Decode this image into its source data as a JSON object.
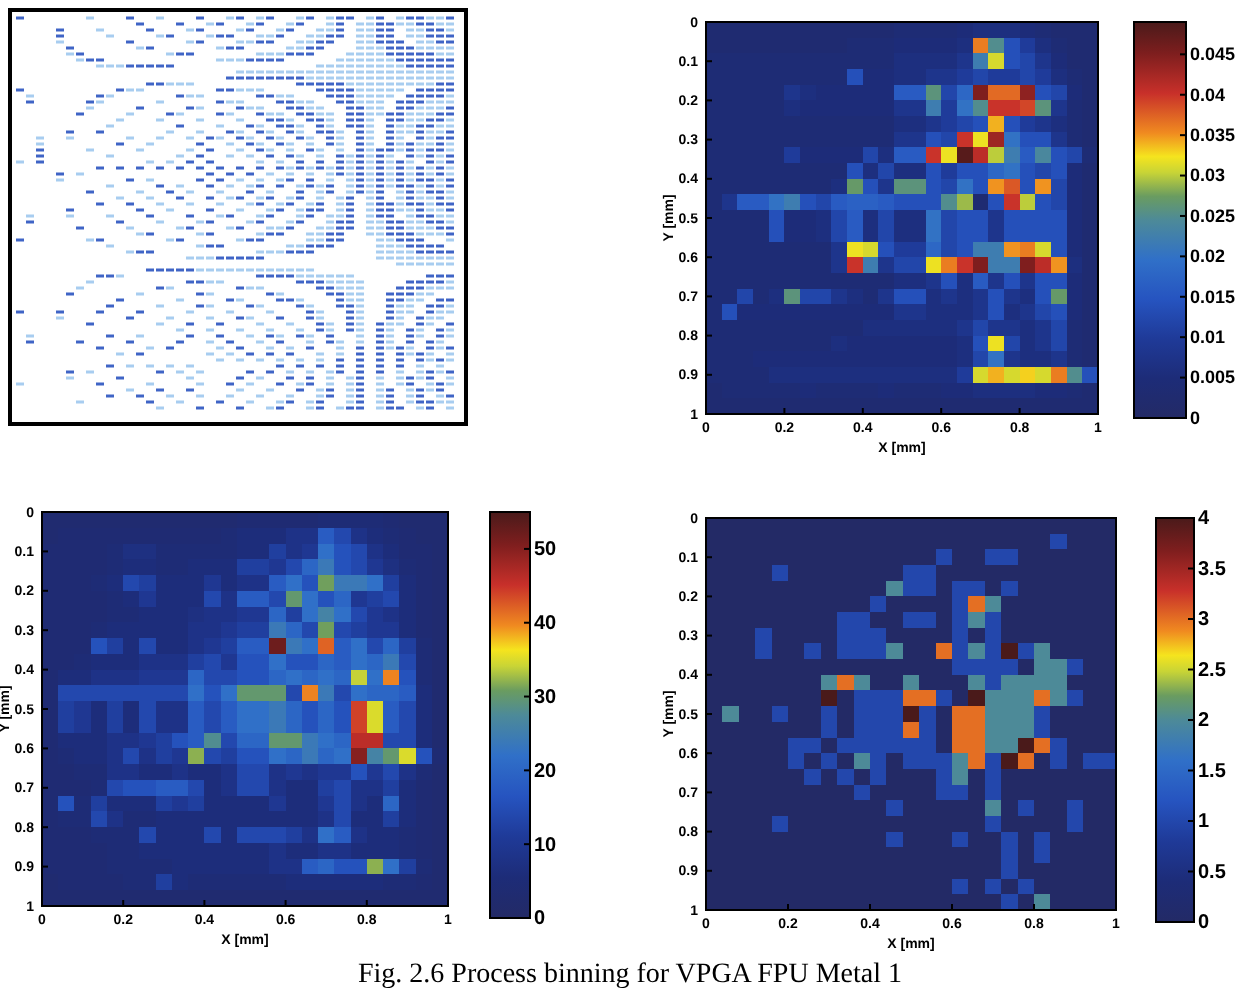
{
  "chart_data": [
    {
      "type": "heatmap",
      "xlabel": "X [mm]",
      "ylabel": "Y [mm]",
      "x": [
        0.02,
        0.06,
        0.1,
        0.14,
        0.18,
        0.22,
        0.26,
        0.3,
        0.34,
        0.38,
        0.42,
        0.46,
        0.5,
        0.54,
        0.58,
        0.62,
        0.66,
        0.7,
        0.74,
        0.78,
        0.82,
        0.86,
        0.9,
        0.94,
        0.98
      ],
      "y": [
        0.02,
        0.06,
        0.1,
        0.14,
        0.18,
        0.22,
        0.26,
        0.3,
        0.34,
        0.38,
        0.42,
        0.46,
        0.5,
        0.54,
        0.58,
        0.62,
        0.66,
        0.7,
        0.74,
        0.78,
        0.82,
        0.86,
        0.9,
        0.94,
        0.98
      ],
      "xlim": [
        0,
        1
      ],
      "xticks": [
        0,
        0.2,
        0.4,
        0.6,
        0.8,
        1
      ],
      "ylim": [
        1,
        0
      ],
      "yticks": [
        0,
        0.1,
        0.2,
        0.3,
        0.4,
        0.5,
        0.6,
        0.7,
        0.8,
        0.9,
        1
      ],
      "clim": [
        0,
        0.049
      ],
      "cticks": [
        0,
        0.005,
        0.01,
        0.015,
        0.02,
        0.025,
        0.03,
        0.035,
        0.04,
        0.045
      ],
      "cells": [
        [
          0.003,
          0.003,
          0.003,
          0.003,
          0.003,
          0.003,
          0.003,
          0.003,
          0.003,
          0.003,
          0.003,
          0.003,
          0.004,
          0.004,
          0.004,
          0.004,
          0.005,
          0.006,
          0.006,
          0.006,
          0.005,
          0.004,
          0.003,
          0.003,
          0.003
        ],
        [
          0.003,
          0.003,
          0.003,
          0.003,
          0.003,
          0.003,
          0.003,
          0.003,
          0.003,
          0.004,
          0.004,
          0.004,
          0.005,
          0.005,
          0.005,
          0.005,
          0.006,
          0.036,
          0.025,
          0.014,
          0.01,
          0.006,
          0.004,
          0.003,
          0.003
        ],
        [
          0.004,
          0.004,
          0.004,
          0.004,
          0.004,
          0.004,
          0.004,
          0.004,
          0.004,
          0.004,
          0.004,
          0.004,
          0.006,
          0.006,
          0.006,
          0.006,
          0.008,
          0.022,
          0.031,
          0.014,
          0.012,
          0.008,
          0.005,
          0.003,
          0.003
        ],
        [
          0.004,
          0.004,
          0.004,
          0.004,
          0.004,
          0.004,
          0.004,
          0.004,
          0.004,
          0.014,
          0.005,
          0.005,
          0.006,
          0.006,
          0.008,
          0.008,
          0.01,
          0.012,
          0.01,
          0.01,
          0.012,
          0.01,
          0.006,
          0.004,
          0.003
        ],
        [
          0.004,
          0.004,
          0.004,
          0.004,
          0.004,
          0.008,
          0.006,
          0.005,
          0.005,
          0.005,
          0.005,
          0.005,
          0.016,
          0.016,
          0.026,
          0.012,
          0.018,
          0.045,
          0.037,
          0.037,
          0.044,
          0.014,
          0.012,
          0.005,
          0.003
        ],
        [
          0.004,
          0.004,
          0.004,
          0.004,
          0.004,
          0.006,
          0.005,
          0.005,
          0.005,
          0.005,
          0.005,
          0.005,
          0.008,
          0.008,
          0.022,
          0.01,
          0.02,
          0.025,
          0.04,
          0.04,
          0.039,
          0.026,
          0.008,
          0.004,
          0.003
        ],
        [
          0.004,
          0.004,
          0.004,
          0.004,
          0.004,
          0.004,
          0.004,
          0.004,
          0.004,
          0.004,
          0.004,
          0.004,
          0.006,
          0.006,
          0.008,
          0.01,
          0.012,
          0.014,
          0.034,
          0.014,
          0.01,
          0.008,
          0.006,
          0.004,
          0.003
        ],
        [
          0.004,
          0.004,
          0.004,
          0.004,
          0.004,
          0.004,
          0.004,
          0.004,
          0.004,
          0.004,
          0.004,
          0.004,
          0.008,
          0.008,
          0.014,
          0.012,
          0.04,
          0.032,
          0.043,
          0.02,
          0.014,
          0.014,
          0.008,
          0.004,
          0.003
        ],
        [
          0.004,
          0.004,
          0.004,
          0.004,
          0.004,
          0.01,
          0.005,
          0.005,
          0.005,
          0.005,
          0.012,
          0.006,
          0.016,
          0.016,
          0.04,
          0.032,
          0.048,
          0.041,
          0.03,
          0.022,
          0.016,
          0.024,
          0.014,
          0.012,
          0.004
        ],
        [
          0.004,
          0.004,
          0.004,
          0.004,
          0.004,
          0.004,
          0.004,
          0.004,
          0.004,
          0.014,
          0.006,
          0.012,
          0.006,
          0.006,
          0.014,
          0.01,
          0.014,
          0.014,
          0.018,
          0.02,
          0.014,
          0.012,
          0.014,
          0.005,
          0.003
        ],
        [
          0.004,
          0.004,
          0.004,
          0.004,
          0.004,
          0.004,
          0.004,
          0.004,
          0.006,
          0.027,
          0.014,
          0.008,
          0.026,
          0.026,
          0.014,
          0.012,
          0.02,
          0.014,
          0.035,
          0.038,
          0.014,
          0.035,
          0.012,
          0.005,
          0.003
        ],
        [
          0.004,
          0.008,
          0.016,
          0.016,
          0.02,
          0.022,
          0.014,
          0.012,
          0.016,
          0.017,
          0.017,
          0.016,
          0.014,
          0.014,
          0.014,
          0.025,
          0.029,
          0.003,
          0.014,
          0.04,
          0.03,
          0.014,
          0.012,
          0.005,
          0.003
        ],
        [
          0.004,
          0.004,
          0.004,
          0.004,
          0.014,
          0.005,
          0.005,
          0.006,
          0.012,
          0.016,
          0.006,
          0.012,
          0.006,
          0.006,
          0.02,
          0.012,
          0.014,
          0.014,
          0.008,
          0.014,
          0.014,
          0.014,
          0.014,
          0.005,
          0.003
        ],
        [
          0.004,
          0.004,
          0.004,
          0.004,
          0.014,
          0.005,
          0.005,
          0.006,
          0.012,
          0.016,
          0.006,
          0.012,
          0.006,
          0.006,
          0.02,
          0.012,
          0.014,
          0.014,
          0.008,
          0.014,
          0.014,
          0.014,
          0.014,
          0.005,
          0.003
        ],
        [
          0.004,
          0.004,
          0.004,
          0.004,
          0.004,
          0.004,
          0.004,
          0.004,
          0.008,
          0.032,
          0.031,
          0.014,
          0.01,
          0.01,
          0.018,
          0.012,
          0.014,
          0.022,
          0.022,
          0.035,
          0.036,
          0.031,
          0.014,
          0.005,
          0.003
        ],
        [
          0.004,
          0.004,
          0.004,
          0.004,
          0.004,
          0.004,
          0.004,
          0.004,
          0.008,
          0.04,
          0.022,
          0.008,
          0.012,
          0.012,
          0.032,
          0.036,
          0.04,
          0.045,
          0.022,
          0.022,
          0.045,
          0.041,
          0.035,
          0.006,
          0.003
        ],
        [
          0.004,
          0.004,
          0.004,
          0.004,
          0.004,
          0.004,
          0.004,
          0.004,
          0.004,
          0.004,
          0.004,
          0.004,
          0.006,
          0.006,
          0.008,
          0.014,
          0.006,
          0.016,
          0.008,
          0.014,
          0.008,
          0.014,
          0.014,
          0.005,
          0.003
        ],
        [
          0.004,
          0.004,
          0.012,
          0.004,
          0.006,
          0.026,
          0.012,
          0.012,
          0.008,
          0.006,
          0.004,
          0.008,
          0.014,
          0.014,
          0.006,
          0.008,
          0.006,
          0.008,
          0.014,
          0.008,
          0.006,
          0.014,
          0.027,
          0.005,
          0.003
        ],
        [
          0.004,
          0.014,
          0.005,
          0.005,
          0.005,
          0.005,
          0.005,
          0.005,
          0.005,
          0.005,
          0.005,
          0.005,
          0.008,
          0.008,
          0.006,
          0.006,
          0.006,
          0.008,
          0.014,
          0.006,
          0.008,
          0.012,
          0.014,
          0.005,
          0.003
        ],
        [
          0.004,
          0.004,
          0.004,
          0.004,
          0.004,
          0.004,
          0.004,
          0.004,
          0.004,
          0.004,
          0.006,
          0.006,
          0.006,
          0.006,
          0.006,
          0.006,
          0.008,
          0.012,
          0.008,
          0.008,
          0.006,
          0.008,
          0.012,
          0.004,
          0.003
        ],
        [
          0.004,
          0.004,
          0.004,
          0.004,
          0.004,
          0.004,
          0.004,
          0.004,
          0.006,
          0.005,
          0.005,
          0.005,
          0.005,
          0.005,
          0.005,
          0.005,
          0.006,
          0.014,
          0.032,
          0.012,
          0.006,
          0.008,
          0.012,
          0.004,
          0.003
        ],
        [
          0.004,
          0.004,
          0.004,
          0.005,
          0.005,
          0.005,
          0.005,
          0.005,
          0.005,
          0.005,
          0.005,
          0.005,
          0.005,
          0.005,
          0.005,
          0.005,
          0.006,
          0.012,
          0.02,
          0.008,
          0.006,
          0.006,
          0.008,
          0.004,
          0.003
        ],
        [
          0.004,
          0.004,
          0.004,
          0.004,
          0.006,
          0.006,
          0.006,
          0.006,
          0.006,
          0.006,
          0.006,
          0.006,
          0.006,
          0.006,
          0.006,
          0.006,
          0.01,
          0.031,
          0.034,
          0.031,
          0.033,
          0.031,
          0.036,
          0.025,
          0.014
        ],
        [
          0.003,
          0.004,
          0.004,
          0.004,
          0.004,
          0.004,
          0.005,
          0.004,
          0.004,
          0.004,
          0.004,
          0.005,
          0.004,
          0.004,
          0.004,
          0.005,
          0.005,
          0.006,
          0.006,
          0.006,
          0.006,
          0.005,
          0.005,
          0.004,
          0.003
        ],
        [
          0.003,
          0.003,
          0.003,
          0.003,
          0.003,
          0.003,
          0.003,
          0.003,
          0.003,
          0.003,
          0.003,
          0.003,
          0.003,
          0.003,
          0.003,
          0.003,
          0.003,
          0.003,
          0.003,
          0.003,
          0.003,
          0.003,
          0.003,
          0.003,
          0.003
        ]
      ]
    },
    {
      "type": "heatmap",
      "xlabel": "X [mm]",
      "ylabel": "Y [mm]",
      "x": [
        0.02,
        0.06,
        0.1,
        0.14,
        0.18,
        0.22,
        0.26,
        0.3,
        0.34,
        0.38,
        0.42,
        0.46,
        0.5,
        0.54,
        0.58,
        0.62,
        0.66,
        0.7,
        0.74,
        0.78,
        0.82,
        0.86,
        0.9,
        0.94,
        0.98
      ],
      "y": [
        0.02,
        0.06,
        0.1,
        0.14,
        0.18,
        0.22,
        0.26,
        0.3,
        0.34,
        0.38,
        0.42,
        0.46,
        0.5,
        0.54,
        0.58,
        0.62,
        0.66,
        0.7,
        0.74,
        0.78,
        0.82,
        0.86,
        0.9,
        0.94,
        0.98
      ],
      "xlim": [
        0,
        1
      ],
      "xticks": [
        0,
        0.2,
        0.4,
        0.6,
        0.8,
        1
      ],
      "ylim": [
        1,
        0
      ],
      "yticks": [
        0,
        0.1,
        0.2,
        0.3,
        0.4,
        0.5,
        0.6,
        0.7,
        0.8,
        0.9,
        1
      ],
      "clim": [
        0,
        55
      ],
      "cticks": [
        0,
        10,
        20,
        30,
        40,
        50
      ],
      "cells": [
        [
          3,
          3,
          3,
          3,
          3,
          3,
          3,
          3,
          3,
          3,
          3,
          3,
          4,
          4,
          4,
          4,
          4,
          5,
          5,
          5,
          5,
          4,
          3,
          3,
          3
        ],
        [
          3,
          4,
          4,
          4,
          4,
          4,
          4,
          4,
          4,
          4,
          4,
          5,
          6,
          6,
          6,
          8,
          8,
          18,
          14,
          8,
          6,
          5,
          4,
          3,
          3
        ],
        [
          4,
          4,
          4,
          4,
          5,
          7,
          7,
          5,
          5,
          5,
          5,
          5,
          6,
          6,
          12,
          8,
          10,
          22,
          16,
          14,
          8,
          6,
          4,
          4,
          3
        ],
        [
          4,
          4,
          4,
          4,
          5,
          6,
          6,
          5,
          5,
          6,
          6,
          6,
          12,
          12,
          10,
          14,
          20,
          24,
          16,
          14,
          10,
          7,
          5,
          4,
          3
        ],
        [
          4,
          4,
          4,
          5,
          6,
          14,
          12,
          6,
          6,
          6,
          10,
          6,
          8,
          8,
          18,
          22,
          16,
          31,
          24,
          24,
          22,
          12,
          6,
          4,
          3
        ],
        [
          4,
          4,
          4,
          4,
          5,
          6,
          10,
          6,
          6,
          6,
          14,
          8,
          18,
          18,
          14,
          30,
          22,
          16,
          20,
          10,
          12,
          14,
          6,
          4,
          3
        ],
        [
          4,
          4,
          4,
          4,
          5,
          5,
          6,
          6,
          6,
          7,
          8,
          8,
          10,
          10,
          20,
          12,
          22,
          26,
          22,
          14,
          10,
          8,
          6,
          4,
          3
        ],
        [
          4,
          4,
          4,
          5,
          6,
          6,
          6,
          6,
          6,
          8,
          8,
          10,
          12,
          12,
          24,
          20,
          14,
          31,
          14,
          12,
          10,
          10,
          6,
          4,
          3
        ],
        [
          4,
          4,
          4,
          16,
          12,
          6,
          14,
          6,
          6,
          8,
          10,
          12,
          18,
          18,
          52,
          24,
          22,
          42,
          18,
          22,
          14,
          20,
          12,
          5,
          3
        ],
        [
          4,
          4,
          5,
          6,
          6,
          6,
          8,
          8,
          8,
          12,
          14,
          10,
          16,
          16,
          22,
          16,
          16,
          20,
          18,
          22,
          20,
          24,
          14,
          5,
          3
        ],
        [
          4,
          6,
          6,
          8,
          8,
          8,
          10,
          10,
          10,
          20,
          14,
          14,
          16,
          16,
          20,
          22,
          20,
          22,
          20,
          34,
          22,
          40,
          16,
          5,
          3
        ],
        [
          4,
          14,
          14,
          14,
          14,
          14,
          14,
          14,
          14,
          22,
          16,
          22,
          30,
          30,
          30,
          14,
          40,
          24,
          14,
          22,
          20,
          20,
          18,
          6,
          3
        ],
        [
          4,
          12,
          10,
          6,
          12,
          6,
          14,
          8,
          8,
          18,
          14,
          18,
          22,
          22,
          24,
          20,
          16,
          20,
          16,
          44,
          35,
          18,
          14,
          6,
          3
        ],
        [
          4,
          12,
          10,
          6,
          12,
          6,
          14,
          8,
          8,
          18,
          14,
          18,
          22,
          22,
          24,
          20,
          16,
          20,
          16,
          44,
          35,
          18,
          14,
          6,
          3
        ],
        [
          4,
          6,
          6,
          6,
          8,
          8,
          10,
          12,
          16,
          18,
          28,
          14,
          20,
          20,
          30,
          30,
          24,
          22,
          20,
          46,
          46,
          14,
          14,
          6,
          3
        ],
        [
          4,
          5,
          6,
          6,
          8,
          14,
          8,
          12,
          10,
          32,
          14,
          12,
          16,
          16,
          22,
          20,
          24,
          20,
          22,
          50,
          26,
          30,
          35,
          16,
          4
        ],
        [
          4,
          4,
          5,
          5,
          8,
          8,
          6,
          6,
          8,
          6,
          6,
          8,
          14,
          14,
          8,
          10,
          8,
          10,
          10,
          16,
          10,
          14,
          8,
          5,
          3
        ],
        [
          4,
          4,
          4,
          5,
          14,
          16,
          16,
          18,
          18,
          14,
          6,
          8,
          14,
          14,
          8,
          6,
          6,
          12,
          14,
          8,
          8,
          12,
          6,
          4,
          3
        ],
        [
          4,
          16,
          5,
          12,
          6,
          6,
          6,
          12,
          10,
          12,
          6,
          6,
          6,
          6,
          10,
          6,
          6,
          10,
          14,
          8,
          6,
          20,
          6,
          4,
          3
        ],
        [
          4,
          5,
          5,
          14,
          8,
          5,
          5,
          6,
          6,
          6,
          6,
          6,
          6,
          6,
          6,
          6,
          6,
          8,
          14,
          6,
          6,
          12,
          6,
          4,
          3
        ],
        [
          4,
          4,
          4,
          5,
          5,
          5,
          14,
          6,
          6,
          6,
          14,
          6,
          14,
          14,
          14,
          12,
          8,
          22,
          18,
          8,
          6,
          6,
          5,
          4,
          3
        ],
        [
          4,
          4,
          4,
          4,
          5,
          5,
          6,
          6,
          6,
          6,
          6,
          6,
          6,
          6,
          8,
          6,
          6,
          8,
          8,
          6,
          6,
          6,
          5,
          4,
          3
        ],
        [
          4,
          4,
          4,
          4,
          5,
          5,
          5,
          5,
          6,
          6,
          6,
          6,
          6,
          6,
          8,
          8,
          18,
          20,
          16,
          16,
          32,
          22,
          12,
          5,
          3
        ],
        [
          3,
          4,
          4,
          4,
          4,
          5,
          5,
          12,
          6,
          5,
          5,
          5,
          5,
          5,
          5,
          6,
          6,
          6,
          6,
          6,
          6,
          5,
          5,
          4,
          3
        ],
        [
          3,
          3,
          3,
          3,
          3,
          3,
          3,
          3,
          3,
          3,
          3,
          3,
          3,
          3,
          3,
          3,
          3,
          3,
          3,
          3,
          3,
          3,
          3,
          3,
          3
        ]
      ]
    },
    {
      "type": "heatmap",
      "xlabel": "X [mm]",
      "ylabel": "Y [mm]",
      "x": [
        0.02,
        0.06,
        0.1,
        0.14,
        0.18,
        0.22,
        0.26,
        0.3,
        0.34,
        0.38,
        0.42,
        0.46,
        0.5,
        0.54,
        0.58,
        0.62,
        0.66,
        0.7,
        0.74,
        0.78,
        0.82,
        0.86,
        0.9,
        0.94,
        0.98
      ],
      "y": [
        0.02,
        0.06,
        0.1,
        0.14,
        0.18,
        0.22,
        0.26,
        0.3,
        0.34,
        0.38,
        0.42,
        0.46,
        0.5,
        0.54,
        0.58,
        0.62,
        0.66,
        0.7,
        0.74,
        0.78,
        0.82,
        0.86,
        0.9,
        0.94,
        0.98
      ],
      "xlim": [
        0,
        1
      ],
      "xticks": [
        0,
        0.2,
        0.4,
        0.6,
        0.8,
        1
      ],
      "ylim": [
        1,
        0
      ],
      "yticks": [
        0,
        0.1,
        0.2,
        0.3,
        0.4,
        0.5,
        0.6,
        0.7,
        0.8,
        0.9,
        1
      ],
      "clim": [
        0,
        4
      ],
      "cticks": [
        0,
        0.5,
        1,
        1.5,
        2,
        2.5,
        3,
        3.5,
        4
      ],
      "cells": [
        [
          0,
          0,
          0,
          0,
          0,
          0,
          0,
          0,
          0,
          0,
          0,
          0,
          0,
          0,
          0,
          0,
          0,
          0,
          0,
          0,
          0,
          0,
          0,
          0,
          0
        ],
        [
          0,
          0,
          0,
          0,
          0,
          0,
          0,
          0,
          0,
          0,
          0,
          0,
          0,
          0,
          0,
          0,
          0,
          0,
          0,
          0,
          0,
          1,
          0,
          0,
          0
        ],
        [
          0,
          0,
          0,
          0,
          0,
          0,
          0,
          0,
          0,
          0,
          0,
          0,
          0,
          0,
          1,
          0,
          0,
          1,
          1,
          0,
          0,
          0,
          0,
          0,
          0
        ],
        [
          0,
          0,
          0,
          0,
          1,
          0,
          0,
          0,
          0,
          0,
          0,
          0,
          1,
          1,
          0,
          0,
          0,
          0,
          0,
          0,
          0,
          0,
          0,
          0,
          0
        ],
        [
          0,
          0,
          0,
          0,
          0,
          0,
          0,
          0,
          0,
          0,
          0,
          2,
          1,
          1,
          0,
          1,
          1,
          0,
          1,
          0,
          0,
          0,
          0,
          0,
          0
        ],
        [
          0,
          0,
          0,
          0,
          0,
          0,
          0,
          0,
          0,
          0,
          1,
          0,
          0,
          0,
          0,
          1,
          3,
          2,
          0,
          0,
          0,
          0,
          0,
          0,
          0
        ],
        [
          0,
          0,
          0,
          0,
          0,
          0,
          0,
          0,
          1,
          1,
          0,
          0,
          1,
          1,
          0,
          1,
          2,
          1,
          0,
          0,
          0,
          0,
          0,
          0,
          0
        ],
        [
          0,
          0,
          0,
          1,
          0,
          0,
          0,
          0,
          1,
          1,
          1,
          0,
          0,
          0,
          0,
          1,
          0,
          1,
          0,
          0,
          0,
          0,
          0,
          0,
          0
        ],
        [
          0,
          0,
          0,
          1,
          0,
          0,
          1,
          0,
          1,
          1,
          1,
          2,
          0,
          0,
          3,
          1,
          2,
          1,
          4,
          1,
          2,
          0,
          0,
          0,
          0
        ],
        [
          0,
          0,
          0,
          0,
          0,
          0,
          0,
          0,
          0,
          0,
          0,
          0,
          0,
          0,
          0,
          1,
          1,
          1,
          1,
          0,
          2,
          2,
          1,
          0,
          0
        ],
        [
          0,
          0,
          0,
          0,
          0,
          0,
          0,
          2,
          3,
          2,
          0,
          0,
          2,
          0,
          0,
          0,
          2,
          1,
          2,
          2,
          2,
          2,
          0,
          0,
          0
        ],
        [
          0,
          0,
          0,
          0,
          0,
          0,
          0,
          4,
          0,
          1,
          1,
          1,
          3,
          3,
          1,
          0,
          4,
          2,
          2,
          2,
          3,
          2,
          1,
          0,
          0
        ],
        [
          0,
          2,
          0,
          0,
          1,
          0,
          0,
          1,
          0,
          1,
          1,
          1,
          4,
          1,
          0,
          3,
          3,
          2,
          2,
          2,
          1,
          0,
          0,
          0,
          0
        ],
        [
          0,
          0,
          0,
          0,
          0,
          0,
          0,
          1,
          0,
          1,
          1,
          1,
          3,
          1,
          0,
          3,
          3,
          2,
          2,
          2,
          1,
          0,
          0,
          0,
          0
        ],
        [
          0,
          0,
          0,
          0,
          0,
          1,
          1,
          0,
          1,
          1,
          1,
          1,
          1,
          1,
          0,
          3,
          3,
          2,
          2,
          4,
          3,
          1,
          0,
          0,
          0
        ],
        [
          0,
          0,
          0,
          0,
          0,
          1,
          0,
          1,
          0,
          2,
          1,
          0,
          1,
          1,
          1,
          2,
          3,
          1,
          4,
          3,
          0,
          1,
          0,
          1,
          1
        ],
        [
          0,
          0,
          0,
          0,
          0,
          0,
          1,
          0,
          1,
          0,
          1,
          0,
          0,
          0,
          1,
          2,
          0,
          1,
          0,
          0,
          0,
          0,
          0,
          0,
          0
        ],
        [
          0,
          0,
          0,
          0,
          0,
          0,
          0,
          0,
          0,
          1,
          0,
          0,
          0,
          0,
          1,
          1,
          0,
          1,
          0,
          0,
          0,
          0,
          0,
          0,
          0
        ],
        [
          0,
          0,
          0,
          0,
          0,
          0,
          0,
          0,
          0,
          0,
          0,
          1,
          0,
          0,
          0,
          0,
          0,
          2,
          0,
          1,
          0,
          0,
          1,
          0,
          0
        ],
        [
          0,
          0,
          0,
          0,
          1,
          0,
          0,
          0,
          0,
          0,
          0,
          0,
          0,
          0,
          0,
          0,
          0,
          1,
          0,
          0,
          0,
          0,
          1,
          0,
          0
        ],
        [
          0,
          0,
          0,
          0,
          0,
          0,
          0,
          0,
          0,
          0,
          0,
          1,
          0,
          0,
          0,
          1,
          0,
          0,
          1,
          0,
          1,
          0,
          0,
          0,
          0
        ],
        [
          0,
          0,
          0,
          0,
          0,
          0,
          0,
          0,
          0,
          0,
          0,
          0,
          0,
          0,
          0,
          0,
          0,
          0,
          1,
          0,
          1,
          0,
          0,
          0,
          0
        ],
        [
          0,
          0,
          0,
          0,
          0,
          0,
          0,
          0,
          0,
          0,
          0,
          0,
          0,
          0,
          0,
          0,
          0,
          0,
          1,
          0,
          0,
          0,
          0,
          0,
          0
        ],
        [
          0,
          0,
          0,
          0,
          0,
          0,
          0,
          0,
          0,
          0,
          0,
          0,
          0,
          0,
          0,
          1,
          0,
          1,
          0,
          1,
          0,
          0,
          0,
          0,
          0
        ],
        [
          0,
          0,
          0,
          0,
          0,
          0,
          0,
          0,
          0,
          0,
          0,
          0,
          0,
          0,
          0,
          0,
          0,
          0,
          1,
          0,
          2,
          0,
          0,
          0,
          0
        ]
      ],
      "annotations": [
        "Fig. 2.6 Process binning for VPGA FPU Metal 1"
      ]
    }
  ]
}
